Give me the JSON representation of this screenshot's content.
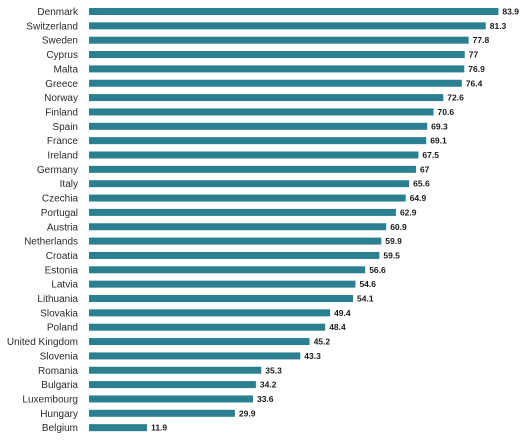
{
  "chart_data": {
    "type": "bar",
    "orientation": "horizontal",
    "title": "",
    "xlabel": "",
    "ylabel": "",
    "bar_color": "#2a7f90",
    "xlim": [
      0,
      86
    ],
    "grid": false,
    "legend": false,
    "categories": [
      "Denmark",
      "Switzerland",
      "Sweden",
      "Cyprus",
      "Malta",
      "Greece",
      "Norway",
      "Finland",
      "Spain",
      "France",
      "Ireland",
      "Germany",
      "Italy",
      "Czechia",
      "Portugal",
      "Austria",
      "Netherlands",
      "Croatia",
      "Estonia",
      "Latvia",
      "Lithuania",
      "Slovakia",
      "Poland",
      "United Kingdom",
      "Slovenia",
      "Romania",
      "Bulgaria",
      "Luxembourg",
      "Hungary",
      "Belgium"
    ],
    "values": [
      83.9,
      81.3,
      77.8,
      77,
      76.9,
      76.4,
      72.6,
      70.6,
      69.3,
      69.1,
      67.5,
      67,
      65.6,
      64.9,
      62.9,
      60.9,
      59.9,
      59.5,
      56.6,
      54.6,
      54.1,
      49.4,
      48.4,
      45.2,
      43.3,
      35.3,
      34.2,
      33.6,
      29.9,
      11.9
    ]
  }
}
